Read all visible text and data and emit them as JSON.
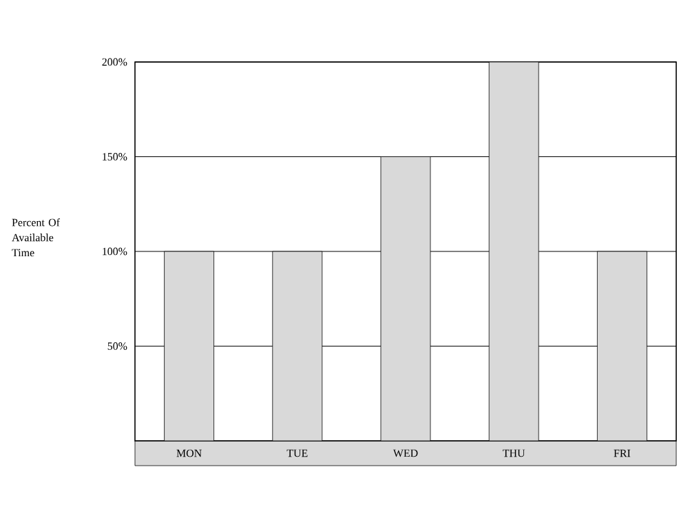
{
  "chart_data": {
    "type": "bar",
    "categories": [
      "MON",
      "TUE",
      "WED",
      "THU",
      "FRI"
    ],
    "values": [
      100,
      100,
      150,
      200,
      100
    ],
    "color": "#d9d9d9",
    "ylabel": "Percent Of Available Time",
    "ylim": [
      0,
      200
    ],
    "yticks": [
      {
        "value": 50,
        "label": "50%"
      },
      {
        "value": 100,
        "label": "100%"
      },
      {
        "value": 150,
        "label": "150%"
      },
      {
        "value": 200,
        "label": "200%"
      }
    ],
    "grid": "y"
  }
}
